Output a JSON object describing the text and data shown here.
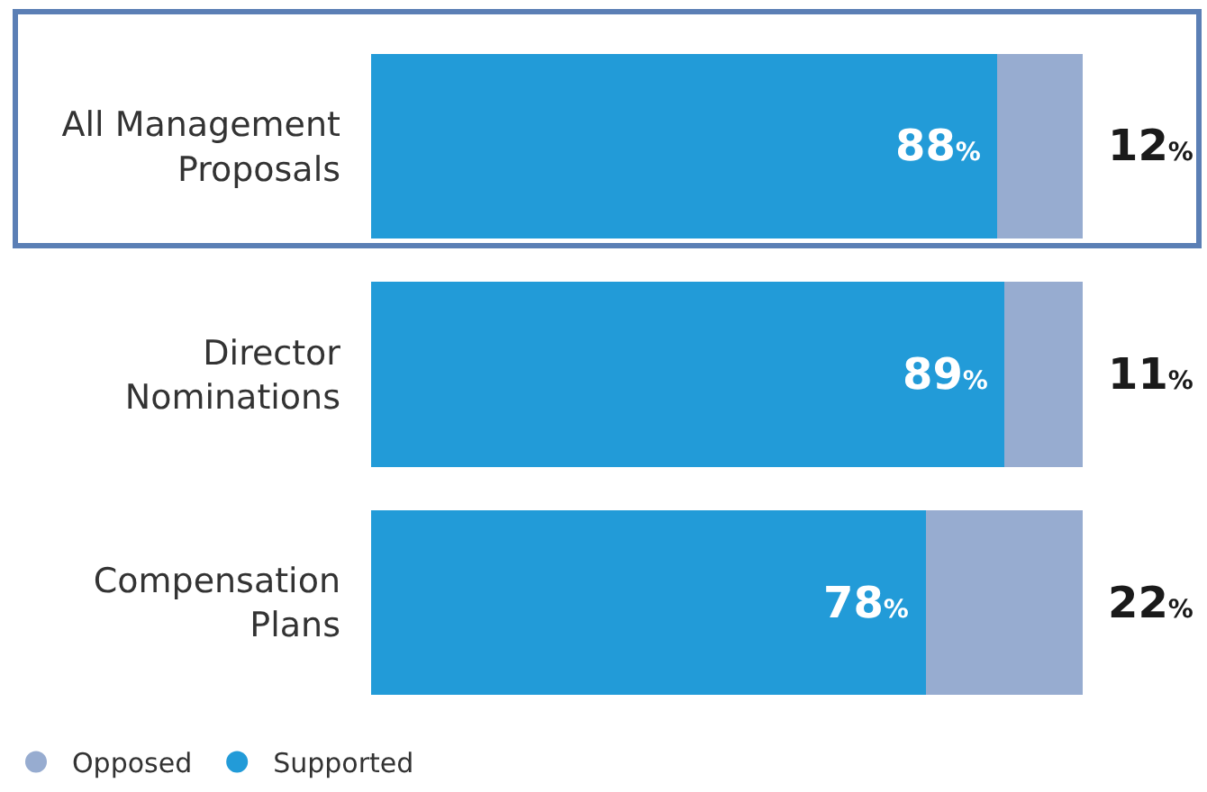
{
  "chart_data": {
    "type": "bar",
    "orientation": "horizontal",
    "stacked": true,
    "categories": [
      "All Management Proposals",
      "Director Nominations",
      "Compensation Plans"
    ],
    "series": [
      {
        "name": "Supported",
        "color": "#229bd8",
        "values": [
          88,
          89,
          78
        ],
        "value_labels": [
          "88%",
          "89%",
          "78%"
        ]
      },
      {
        "name": "Opposed",
        "color": "#97acd0",
        "values": [
          12,
          11,
          22
        ],
        "value_labels": [
          "12%",
          "11%",
          "22%"
        ]
      }
    ],
    "legend": "bottom left",
    "grid": false
  }
}
